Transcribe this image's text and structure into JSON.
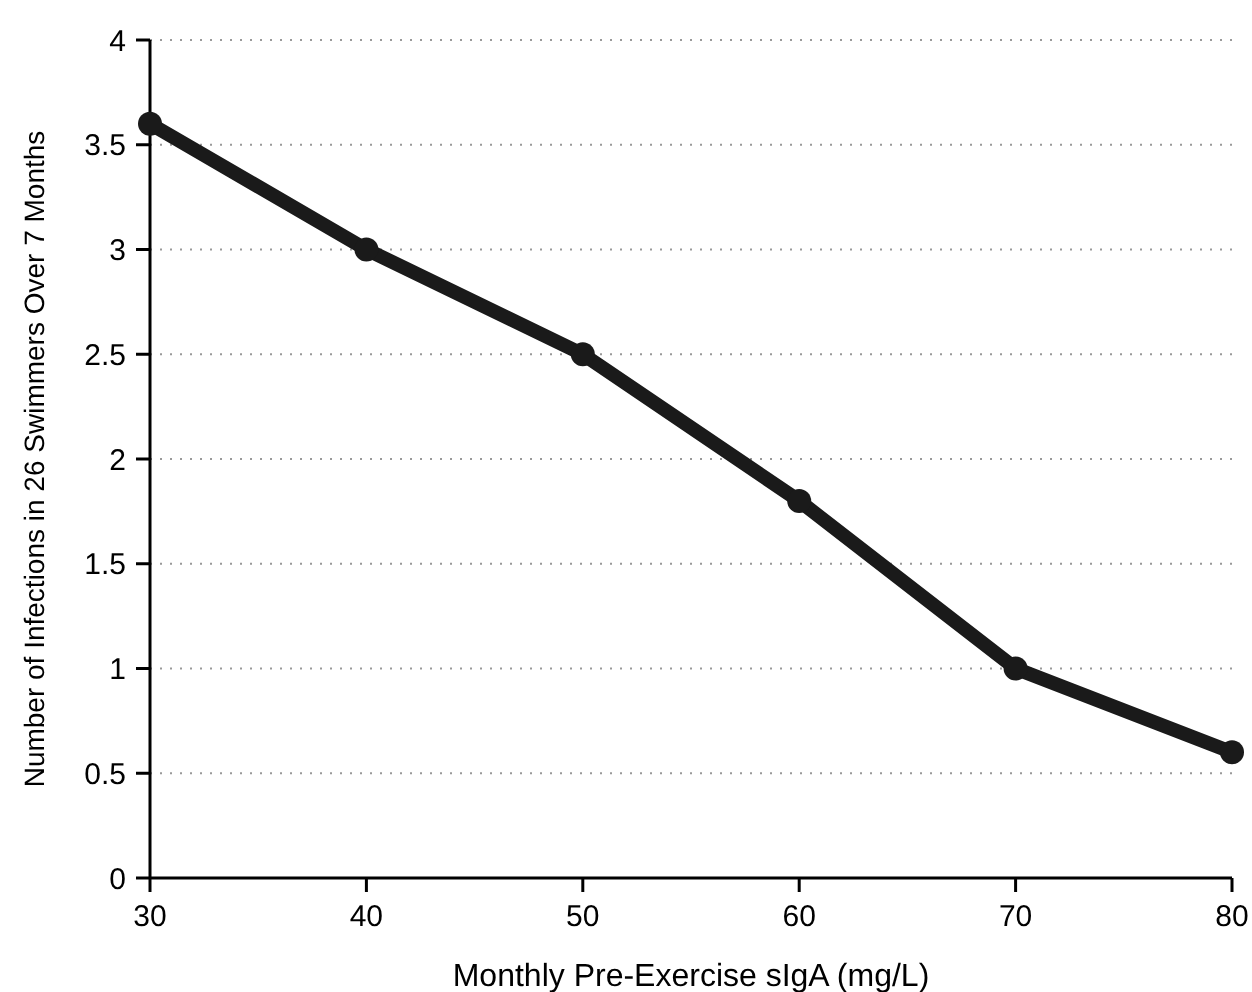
{
  "chart_data": {
    "type": "line",
    "xlabel": "Monthly Pre-Exercise sIgA (mg/L)",
    "ylabel": "Number of Infections in 26 Swimmers Over 7 Months",
    "x": [
      30,
      40,
      50,
      60,
      70,
      80
    ],
    "series": [
      {
        "color": "#1a1a1a",
        "values": [
          3.6,
          3.0,
          2.5,
          1.8,
          1.0,
          0.6
        ]
      }
    ],
    "xlim": [
      30,
      80
    ],
    "xticks": [
      30,
      40,
      50,
      60,
      70,
      80
    ],
    "ylim": [
      0,
      4
    ],
    "yticks": [
      0,
      0.5,
      1,
      1.5,
      2,
      2.5,
      3,
      3.5,
      4
    ],
    "grid": "y",
    "marker": "circle",
    "line_style": "solid"
  }
}
